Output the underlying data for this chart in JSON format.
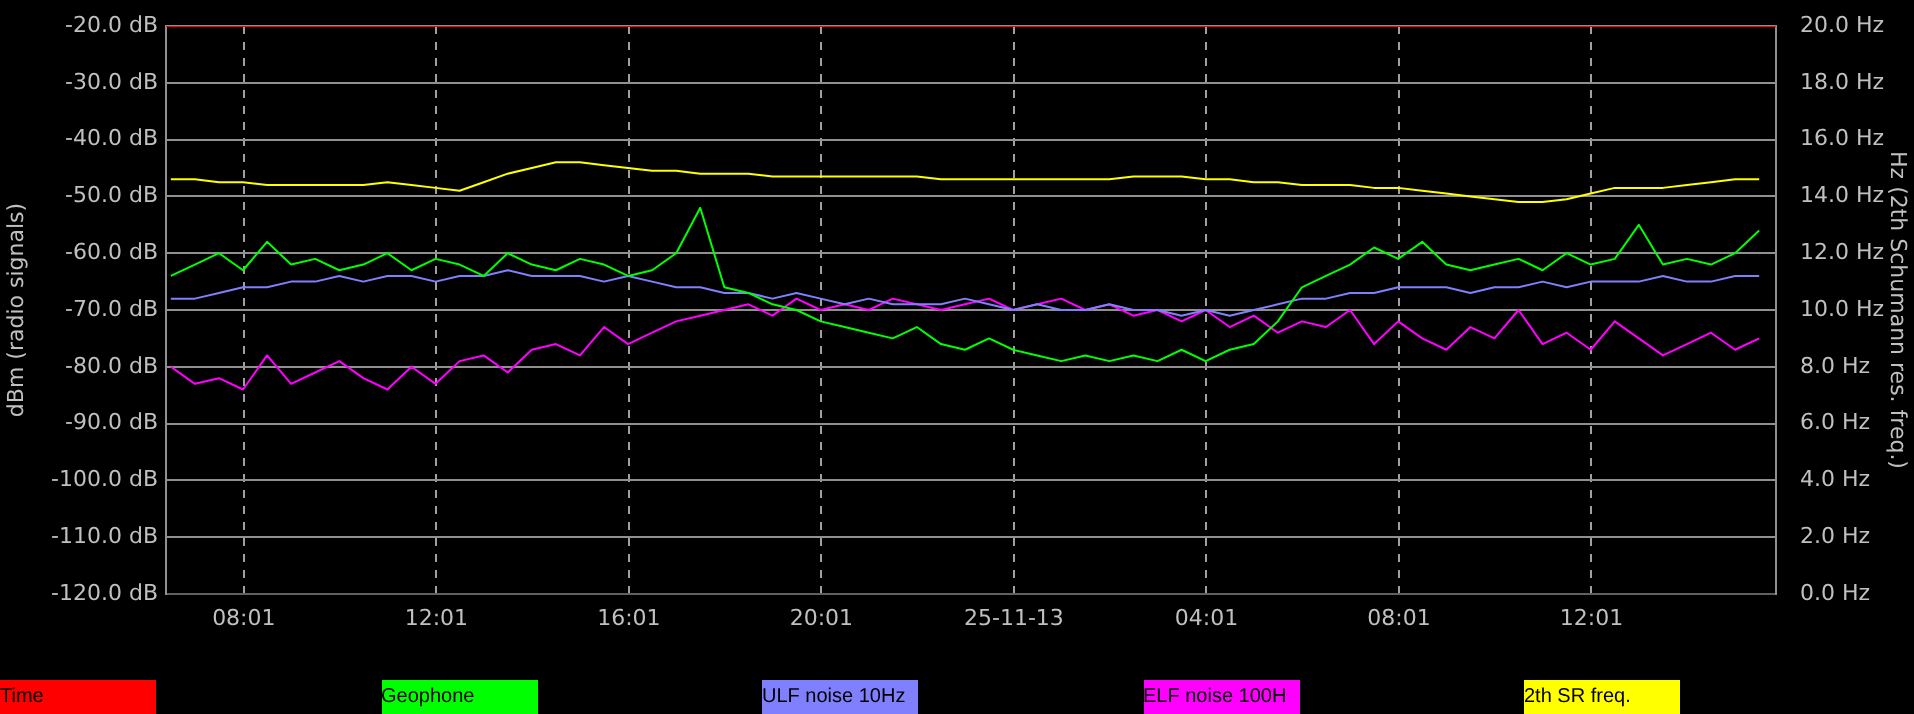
{
  "chart_data": {
    "type": "line",
    "ylabel": "dBm (radio signals)",
    "y2label": "Hz (2th Schumann res. freq.)",
    "x": [
      "--11-24T06:30",
      "--11-24T07:00",
      "--11-24T07:30",
      "--11-24T08:00",
      "--11-24T08:30",
      "--11-24T09:00",
      "--11-24T09:30",
      "--11-24T10:00",
      "--11-24T10:30",
      "--11-24T11:00",
      "--11-24T11:30",
      "--11-24T12:00",
      "--11-24T12:30",
      "--11-24T13:00",
      "--11-24T13:30",
      "--11-24T14:00",
      "--11-24T14:30",
      "--11-24T15:00",
      "--11-24T15:30",
      "--11-24T16:00",
      "--11-24T16:30",
      "--11-24T17:00",
      "--11-24T17:30",
      "--11-24T18:00",
      "--11-24T18:30",
      "--11-24T19:00",
      "--11-24T19:30",
      "--11-24T20:00",
      "--11-24T20:30",
      "--11-24T21:00",
      "--11-24T21:30",
      "--11-24T22:00",
      "--11-24T22:30",
      "--11-24T23:00",
      "--11-24T23:30",
      "--11-25T00:00",
      "--11-25T00:30",
      "--11-25T01:00",
      "--11-25T01:30",
      "--11-25T02:00",
      "--11-25T02:30",
      "--11-25T03:00",
      "--11-25T03:30",
      "--11-25T04:00",
      "--11-25T04:30",
      "--11-25T05:00",
      "--11-25T05:30",
      "--11-25T06:00",
      "--11-25T06:30",
      "--11-25T07:00",
      "--11-25T07:30",
      "--11-25T08:00",
      "--11-25T08:30",
      "--11-25T09:00",
      "--11-25T09:30",
      "--11-25T10:00",
      "--11-25T10:30",
      "--11-25T11:00",
      "--11-25T11:30",
      "--11-25T12:00",
      "--11-25T12:30",
      "--11-25T13:00",
      "--11-25T13:30",
      "--11-25T14:00",
      "--11-25T14:30",
      "--11-25T15:00",
      "--11-25T15:30"
    ],
    "xlim": [
      "--11-24T06:24",
      "--11-25T15:51"
    ],
    "xticks": [
      {
        "value": "--11-24T08:01",
        "label": "08:01"
      },
      {
        "value": "--11-24T12:01",
        "label": "12:01"
      },
      {
        "value": "--11-24T16:01",
        "label": "16:01"
      },
      {
        "value": "--11-24T20:01",
        "label": "20:01"
      },
      {
        "value": "--11-25T00:01",
        "label": "25-11-13"
      },
      {
        "value": "--11-25T04:01",
        "label": "04:01"
      },
      {
        "value": "--11-25T08:01",
        "label": "08:01"
      },
      {
        "value": "--11-25T12:01",
        "label": "12:01"
      }
    ],
    "ylim": [
      -120,
      -20
    ],
    "yticks": [
      {
        "value": -120,
        "label": "-120.0 dB"
      },
      {
        "value": -110,
        "label": "-110.0 dB"
      },
      {
        "value": -100,
        "label": "-100.0 dB"
      },
      {
        "value": -90,
        "label": "-90.0 dB"
      },
      {
        "value": -80,
        "label": "-80.0 dB"
      },
      {
        "value": -70,
        "label": "-70.0 dB"
      },
      {
        "value": -60,
        "label": "-60.0 dB"
      },
      {
        "value": -50,
        "label": "-50.0 dB"
      },
      {
        "value": -40,
        "label": "-40.0 dB"
      },
      {
        "value": -30,
        "label": "-30.0 dB"
      },
      {
        "value": -20,
        "label": "-20.0 dB"
      }
    ],
    "y2lim": [
      0,
      20
    ],
    "y2ticks": [
      {
        "value": 0,
        "label": "0.0 Hz"
      },
      {
        "value": 2,
        "label": "2.0 Hz"
      },
      {
        "value": 4,
        "label": "4.0 Hz"
      },
      {
        "value": 6,
        "label": "6.0 Hz"
      },
      {
        "value": 8,
        "label": "8.0 Hz"
      },
      {
        "value": 10,
        "label": "10.0 Hz"
      },
      {
        "value": 12,
        "label": "12.0 Hz"
      },
      {
        "value": 14,
        "label": "14.0 Hz"
      },
      {
        "value": 16,
        "label": "16.0 Hz"
      },
      {
        "value": 18,
        "label": "18.0 Hz"
      },
      {
        "value": 20,
        "label": "20.0 Hz"
      }
    ],
    "grid": true,
    "legend": "bottom",
    "marker": "none",
    "series": [
      {
        "name": "Time",
        "color": "#ff0000",
        "x": [
          "--11-24T06:24",
          "--11-25T15:51"
        ],
        "values": [
          -20,
          -20
        ]
      },
      {
        "name": "Geophone",
        "color": "#00ff00",
        "values": [
          -64,
          -62,
          -60,
          -63,
          -58,
          -62,
          -61,
          -63,
          -62,
          -60,
          -63,
          -61,
          -62,
          -64,
          -60,
          -62,
          -63,
          -61,
          -62,
          -64,
          -63,
          -60,
          -52,
          -66,
          -67,
          -69,
          -70,
          -72,
          -73,
          -74,
          -75,
          -73,
          -76,
          -77,
          -75,
          -77,
          -78,
          -79,
          -78,
          -79,
          -78,
          -79,
          -77,
          -79,
          -77,
          -76,
          -72,
          -66,
          -64,
          -62,
          -59,
          -61,
          -58,
          -62,
          -63,
          -62,
          -61,
          -63,
          -60,
          -62,
          -61,
          -55,
          -62,
          -61,
          -62,
          -60,
          -56
        ]
      },
      {
        "name": "ULF noise 10Hz",
        "color": "#8080ff",
        "values": [
          -68,
          -68,
          -67,
          -66,
          -66,
          -65,
          -65,
          -64,
          -65,
          -64,
          -64,
          -65,
          -64,
          -64,
          -63,
          -64,
          -64,
          -64,
          -65,
          -64,
          -65,
          -66,
          -66,
          -67,
          -67,
          -68,
          -67,
          -68,
          -69,
          -68,
          -69,
          -69,
          -69,
          -68,
          -69,
          -70,
          -69,
          -70,
          -70,
          -69,
          -70,
          -70,
          -71,
          -70,
          -71,
          -70,
          -69,
          -68,
          -68,
          -67,
          -67,
          -66,
          -66,
          -66,
          -67,
          -66,
          -66,
          -65,
          -66,
          -65,
          -65,
          -65,
          -64,
          -65,
          -65,
          -64,
          -64
        ]
      },
      {
        "name": "ELF noise 100H",
        "color": "#ff00ff",
        "values": [
          -80,
          -83,
          -82,
          -84,
          -78,
          -83,
          -81,
          -79,
          -82,
          -84,
          -80,
          -83,
          -79,
          -78,
          -81,
          -77,
          -76,
          -78,
          -73,
          -76,
          -74,
          -72,
          -71,
          -70,
          -69,
          -71,
          -68,
          -70,
          -69,
          -70,
          -68,
          -69,
          -70,
          -69,
          -68,
          -70,
          -69,
          -68,
          -70,
          -69,
          -71,
          -70,
          -72,
          -70,
          -73,
          -71,
          -74,
          -72,
          -73,
          -70,
          -76,
          -72,
          -75,
          -77,
          -73,
          -75,
          -70,
          -76,
          -74,
          -77,
          -72,
          -75,
          -78,
          -76,
          -74,
          -77,
          -75
        ]
      },
      {
        "name": "2th SR freq.",
        "color": "#ffff00",
        "axis": "y2",
        "values": [
          14.6,
          14.6,
          14.5,
          14.5,
          14.4,
          14.4,
          14.4,
          14.4,
          14.4,
          14.5,
          14.4,
          14.3,
          14.2,
          14.5,
          14.8,
          15.0,
          15.2,
          15.2,
          15.1,
          15.0,
          14.9,
          14.9,
          14.8,
          14.8,
          14.8,
          14.7,
          14.7,
          14.7,
          14.7,
          14.7,
          14.7,
          14.7,
          14.6,
          14.6,
          14.6,
          14.6,
          14.6,
          14.6,
          14.6,
          14.6,
          14.7,
          14.7,
          14.7,
          14.6,
          14.6,
          14.5,
          14.5,
          14.4,
          14.4,
          14.4,
          14.3,
          14.3,
          14.2,
          14.1,
          14.0,
          13.9,
          13.8,
          13.8,
          13.9,
          14.1,
          14.3,
          14.3,
          14.3,
          14.4,
          14.5,
          14.6,
          14.6
        ]
      }
    ]
  }
}
